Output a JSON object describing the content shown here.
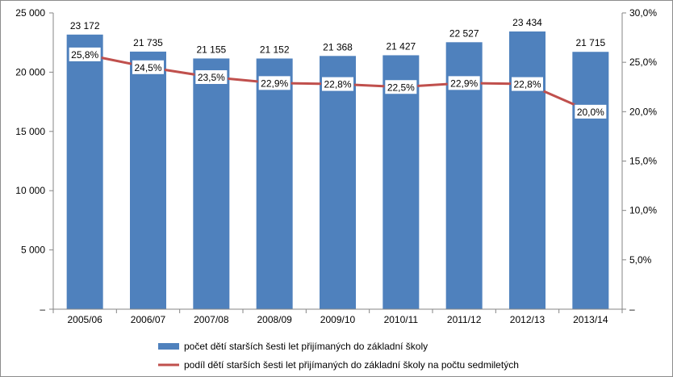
{
  "chart_data": {
    "type": "bar",
    "categories": [
      "2005/06",
      "2006/07",
      "2007/08",
      "2008/09",
      "2009/10",
      "2010/11",
      "2011/12",
      "2012/13",
      "2013/14"
    ],
    "series": [
      {
        "name": "počet dětí starších šesti let přijímaných do základní školy",
        "type": "bar",
        "axis": "left",
        "values": [
          23172,
          21735,
          21155,
          21152,
          21368,
          21427,
          22527,
          23434,
          21715
        ],
        "labels": [
          "23 172",
          "21 735",
          "21 155",
          "21 152",
          "21 368",
          "21 427",
          "22 527",
          "23 434",
          "21 715"
        ],
        "color": "#4f81bd"
      },
      {
        "name": "podíl dětí starších šesti let přijímaných do základní školy na počtu sedmiletých",
        "type": "line",
        "axis": "right",
        "values": [
          25.8,
          24.5,
          23.5,
          22.9,
          22.8,
          22.5,
          22.9,
          22.8,
          20.0
        ],
        "labels": [
          "25,8%",
          "24,5%",
          "23,5%",
          "22,9%",
          "22,8%",
          "22,5%",
          "22,9%",
          "22,8%",
          "20,0%"
        ],
        "color": "#c0504d"
      }
    ],
    "y_left": {
      "ylim": [
        0,
        25000
      ],
      "ticks": [
        0,
        5000,
        10000,
        15000,
        20000,
        25000
      ],
      "tick_labels": [
        "–",
        "5 000",
        "10 000",
        "15 000",
        "20 000",
        "25 000"
      ]
    },
    "y_right": {
      "ylim": [
        0,
        30
      ],
      "ticks": [
        0,
        5,
        10,
        15,
        20,
        25,
        30
      ],
      "tick_labels": [
        "–",
        "5,0%",
        "10,0%",
        "15,0%",
        "20,0%",
        "25,0%",
        "30,0%"
      ]
    },
    "grid": false,
    "legend_position": "bottom"
  }
}
